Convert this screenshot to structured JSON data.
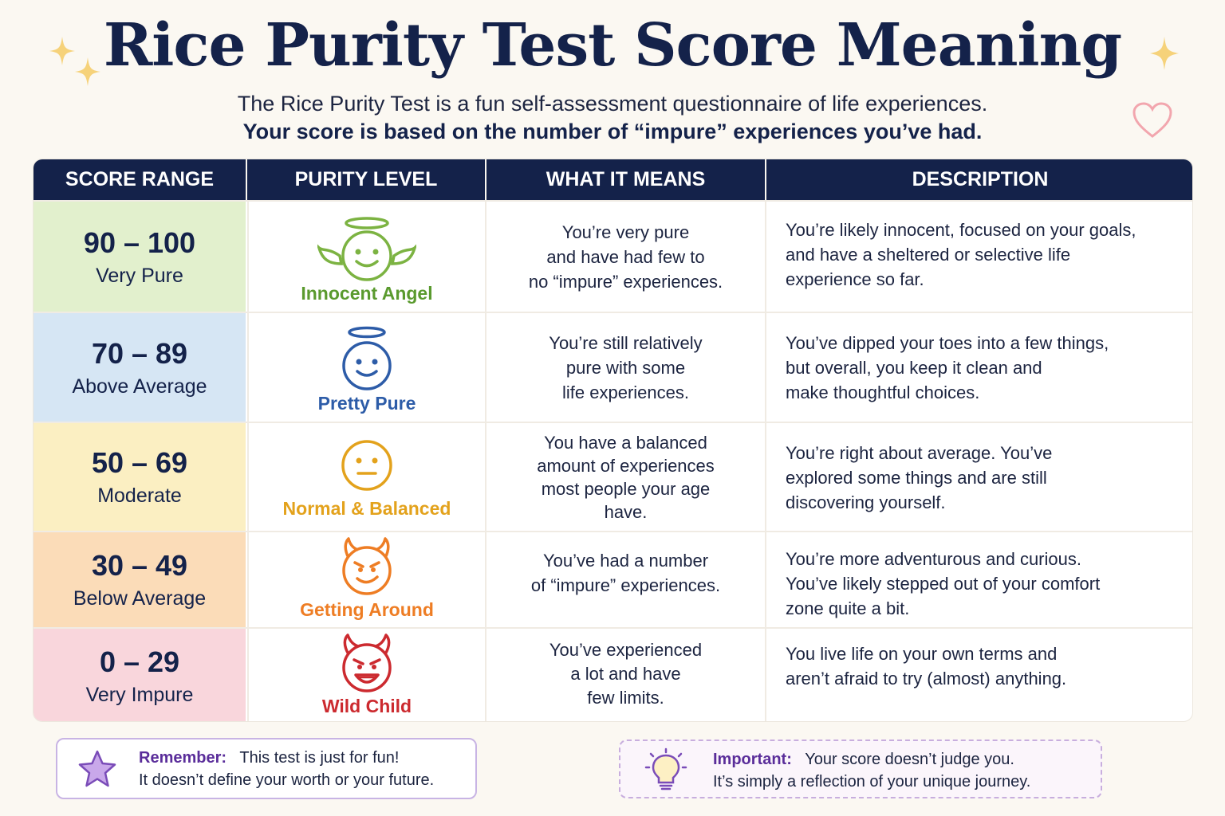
{
  "header": {
    "title": "Rice Purity Test Score Meaning",
    "subtitle_line1": "The Rice Purity Test is a fun self-assessment questionnaire of life experiences.",
    "subtitle_line2": "Your score is based on the number of “impure” experiences you’ve had."
  },
  "table": {
    "columns": [
      "SCORE RANGE",
      "PURITY LEVEL",
      "WHAT IT MEANS",
      "DESCRIPTION"
    ],
    "rows": [
      {
        "range": "90 – 100",
        "range_label": "Very Pure",
        "level": "Innocent Angel",
        "icon": "angel-face-icon",
        "bg": "#e2f0cd",
        "level_color": "#5a9a2e",
        "means": [
          "You’re very pure",
          "and have had few to",
          "no “impure” experiences."
        ],
        "description": [
          "You’re likely innocent, focused on your goals,",
          "and have a sheltered or selective life",
          "experience so far."
        ]
      },
      {
        "range": "70 – 89",
        "range_label": "Above Average",
        "level": "Pretty Pure",
        "icon": "halo-face-icon",
        "bg": "#d6e6f4",
        "level_color": "#2d5ca8",
        "means": [
          "You’re still relatively",
          "pure with some",
          "life experiences."
        ],
        "description": [
          "You’ve dipped your toes into a few things,",
          "but overall, you keep it clean and",
          "make thoughtful choices."
        ]
      },
      {
        "range": "50 – 69",
        "range_label": "Moderate",
        "level": "Normal & Balanced",
        "icon": "neutral-face-icon",
        "bg": "#fbefc2",
        "level_color": "#e3a21c",
        "means": [
          "You have a balanced",
          "amount of experiences",
          "most people your age",
          "have."
        ],
        "description": [
          "You’re right about average. You’ve",
          "explored some things and are still",
          "discovering yourself."
        ]
      },
      {
        "range": "30 – 49",
        "range_label": "Below Average",
        "level": "Getting Around",
        "icon": "mischief-devil-icon",
        "bg": "#fbdcb8",
        "level_color": "#ee7d24",
        "means": [
          "You’ve had a number",
          "of “impure” experiences."
        ],
        "description": [
          "You’re more adventurous and curious.",
          "You’ve likely stepped out of your comfort",
          "zone quite a bit."
        ]
      },
      {
        "range": "0 – 29",
        "range_label": "Very Impure",
        "level": "Wild Child",
        "icon": "devil-face-icon",
        "bg": "#f9d6dc",
        "level_color": "#cc2a2f",
        "means": [
          "You’ve experienced",
          "a lot and have",
          "few limits."
        ],
        "description": [
          "You live life on your own terms and",
          "aren’t afraid to try (almost) anything."
        ]
      }
    ]
  },
  "notes": {
    "remember": {
      "key": "Remember:",
      "line1": "This test is just for fun!",
      "line2": "It doesn’t define your worth or your future.",
      "icon": "star-icon"
    },
    "important": {
      "key": "Important:",
      "line1": "Your score doesn’t judge you.",
      "line2": "It’s simply a reflection of your unique journey.",
      "icon": "lightbulb-icon"
    }
  },
  "colors": {
    "navy": "#14224a",
    "background": "#fbf8f2",
    "sparkle": "#f6d27a",
    "heart": "#f2a6ae"
  }
}
